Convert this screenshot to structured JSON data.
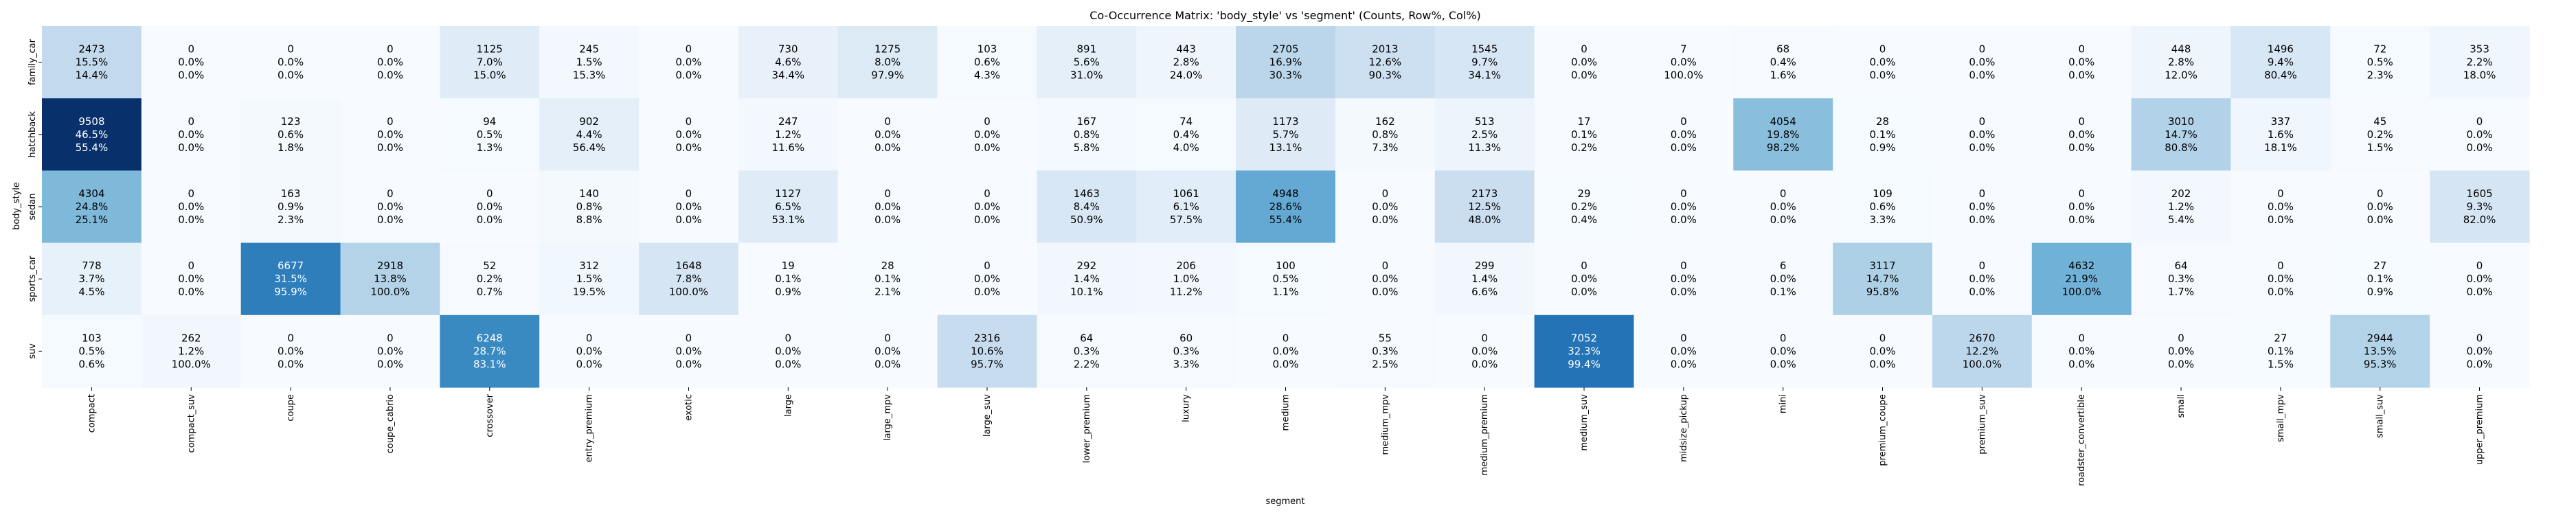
{
  "chart_data": {
    "type": "heatmap",
    "title": "Co-Occurrence Matrix: 'body_style' vs 'segment' (Counts, Row%, Col%)",
    "xlabel": "segment",
    "ylabel": "body_style",
    "colormap": "Blues",
    "rows": [
      "family_car",
      "hatchback",
      "sedan",
      "sports_car",
      "suv"
    ],
    "columns": [
      "compact",
      "compact_suv",
      "coupe",
      "coupe_cabrio",
      "crossover",
      "entry_premium",
      "exotic",
      "large",
      "large_mpv",
      "large_suv",
      "lower_premium",
      "luxury",
      "medium",
      "medium_mpv",
      "medium_premium",
      "medium_suv",
      "midsize_pickup",
      "mini",
      "premium_coupe",
      "premium_suv",
      "roadster_convertible",
      "small",
      "small_mpv",
      "small_suv",
      "upper_premium"
    ],
    "counts": [
      [
        2473,
        0,
        0,
        0,
        1125,
        245,
        0,
        730,
        1275,
        103,
        891,
        443,
        2705,
        2013,
        1545,
        0,
        7,
        68,
        0,
        0,
        0,
        448,
        1496,
        72,
        353
      ],
      [
        9508,
        0,
        123,
        0,
        94,
        902,
        0,
        247,
        0,
        0,
        167,
        74,
        1173,
        162,
        513,
        17,
        0,
        4054,
        28,
        0,
        0,
        3010,
        337,
        45,
        0
      ],
      [
        4304,
        0,
        163,
        0,
        0,
        140,
        0,
        1127,
        0,
        0,
        1463,
        1061,
        4948,
        0,
        2173,
        29,
        0,
        0,
        109,
        0,
        0,
        202,
        0,
        0,
        1605
      ],
      [
        778,
        0,
        6677,
        2918,
        52,
        312,
        1648,
        19,
        28,
        0,
        292,
        206,
        100,
        0,
        299,
        0,
        0,
        6,
        3117,
        0,
        4632,
        64,
        0,
        27,
        0
      ],
      [
        103,
        262,
        0,
        0,
        6248,
        0,
        0,
        0,
        0,
        2316,
        64,
        60,
        0,
        55,
        0,
        7052,
        0,
        0,
        0,
        2670,
        0,
        0,
        27,
        2944,
        0
      ]
    ],
    "row_pct": [
      [
        "15.5%",
        "0.0%",
        "0.0%",
        "0.0%",
        "7.0%",
        "1.5%",
        "0.0%",
        "4.6%",
        "8.0%",
        "0.6%",
        "5.6%",
        "2.8%",
        "16.9%",
        "12.6%",
        "9.7%",
        "0.0%",
        "0.0%",
        "0.4%",
        "0.0%",
        "0.0%",
        "0.0%",
        "2.8%",
        "9.4%",
        "0.5%",
        "2.2%"
      ],
      [
        "46.5%",
        "0.0%",
        "0.6%",
        "0.0%",
        "0.5%",
        "4.4%",
        "0.0%",
        "1.2%",
        "0.0%",
        "0.0%",
        "0.8%",
        "0.4%",
        "5.7%",
        "0.8%",
        "2.5%",
        "0.1%",
        "0.0%",
        "19.8%",
        "0.1%",
        "0.0%",
        "0.0%",
        "14.7%",
        "1.6%",
        "0.2%",
        "0.0%"
      ],
      [
        "24.8%",
        "0.0%",
        "0.9%",
        "0.0%",
        "0.0%",
        "0.8%",
        "0.0%",
        "6.5%",
        "0.0%",
        "0.0%",
        "8.4%",
        "6.1%",
        "28.6%",
        "0.0%",
        "12.5%",
        "0.2%",
        "0.0%",
        "0.0%",
        "0.6%",
        "0.0%",
        "0.0%",
        "1.2%",
        "0.0%",
        "0.0%",
        "9.3%"
      ],
      [
        "3.7%",
        "0.0%",
        "31.5%",
        "13.8%",
        "0.2%",
        "1.5%",
        "7.8%",
        "0.1%",
        "0.1%",
        "0.0%",
        "1.4%",
        "1.0%",
        "0.5%",
        "0.0%",
        "1.4%",
        "0.0%",
        "0.0%",
        "0.0%",
        "14.7%",
        "0.0%",
        "21.9%",
        "0.3%",
        "0.0%",
        "0.1%",
        "0.0%"
      ],
      [
        "0.5%",
        "1.2%",
        "0.0%",
        "0.0%",
        "28.7%",
        "0.0%",
        "0.0%",
        "0.0%",
        "0.0%",
        "10.6%",
        "0.3%",
        "0.3%",
        "0.0%",
        "0.3%",
        "0.0%",
        "32.3%",
        "0.0%",
        "0.0%",
        "0.0%",
        "12.2%",
        "0.0%",
        "0.0%",
        "0.1%",
        "13.5%",
        "0.0%"
      ]
    ],
    "col_pct": [
      [
        "14.4%",
        "0.0%",
        "0.0%",
        "0.0%",
        "15.0%",
        "15.3%",
        "0.0%",
        "34.4%",
        "97.9%",
        "4.3%",
        "31.0%",
        "24.0%",
        "30.3%",
        "90.3%",
        "34.1%",
        "0.0%",
        "100.0%",
        "1.6%",
        "0.0%",
        "0.0%",
        "0.0%",
        "12.0%",
        "80.4%",
        "2.3%",
        "18.0%"
      ],
      [
        "55.4%",
        "0.0%",
        "1.8%",
        "0.0%",
        "1.3%",
        "56.4%",
        "0.0%",
        "11.6%",
        "0.0%",
        "0.0%",
        "5.8%",
        "4.0%",
        "13.1%",
        "7.3%",
        "11.3%",
        "0.2%",
        "0.0%",
        "98.2%",
        "0.9%",
        "0.0%",
        "0.0%",
        "80.8%",
        "18.1%",
        "1.5%",
        "0.0%"
      ],
      [
        "25.1%",
        "0.0%",
        "2.3%",
        "0.0%",
        "0.0%",
        "8.8%",
        "0.0%",
        "53.1%",
        "0.0%",
        "0.0%",
        "50.9%",
        "57.5%",
        "55.4%",
        "0.0%",
        "48.0%",
        "0.4%",
        "0.0%",
        "0.0%",
        "3.3%",
        "0.0%",
        "0.0%",
        "5.4%",
        "0.0%",
        "0.0%",
        "82.0%"
      ],
      [
        "4.5%",
        "0.0%",
        "95.9%",
        "100.0%",
        "0.7%",
        "19.5%",
        "100.0%",
        "0.9%",
        "2.1%",
        "0.0%",
        "10.1%",
        "11.2%",
        "1.1%",
        "0.0%",
        "6.6%",
        "0.0%",
        "0.0%",
        "0.1%",
        "95.8%",
        "0.0%",
        "100.0%",
        "1.7%",
        "0.0%",
        "0.9%",
        "0.0%"
      ],
      [
        "0.6%",
        "100.0%",
        "0.0%",
        "0.0%",
        "83.1%",
        "0.0%",
        "0.0%",
        "0.0%",
        "0.0%",
        "95.7%",
        "2.2%",
        "3.3%",
        "0.0%",
        "2.5%",
        "0.0%",
        "99.4%",
        "0.0%",
        "0.0%",
        "0.0%",
        "100.0%",
        "0.0%",
        "0.0%",
        "1.5%",
        "95.3%",
        "0.0%"
      ]
    ]
  }
}
